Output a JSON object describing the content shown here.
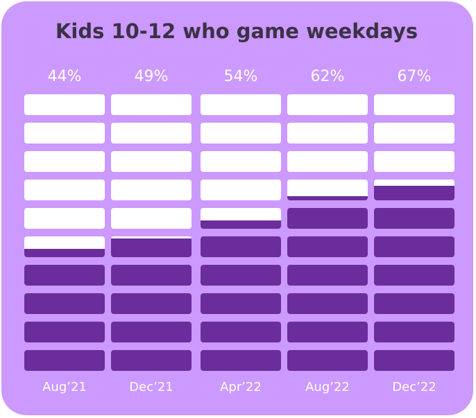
{
  "chart_data": {
    "type": "bar",
    "title": "Kids 10-12 who game weekdays",
    "categories": [
      "Aug’21",
      "Dec’21",
      "Apr’22",
      "Aug’22",
      "Dec’22"
    ],
    "values": [
      44,
      49,
      54,
      62,
      67
    ],
    "value_labels": [
      "44%",
      "49%",
      "54%",
      "62%",
      "67%"
    ],
    "unit": "%",
    "ylim": [
      0,
      100
    ],
    "grid": false,
    "legend": "none"
  },
  "colors": {
    "background": "#cc99ff",
    "filled": "#6b2d9b",
    "empty": "#ffffff",
    "title": "#3a3246",
    "text": "#ffffff"
  }
}
